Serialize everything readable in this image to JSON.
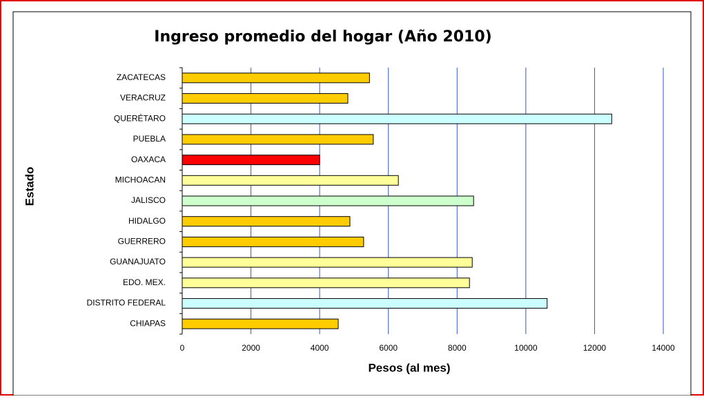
{
  "chart_data": {
    "type": "barh",
    "title": "Ingreso promedio del hogar (Año 2010)",
    "x_label": "Pesos (al mes)",
    "y_label": "Estado",
    "categories": [
      "ZACATECAS",
      "VERACRUZ",
      "QUERÉTARO",
      "PUEBLA",
      "OAXACA",
      "MICHOACAN",
      "JALISCO",
      "HIDALGO",
      "GUERRERO",
      "GUANAJUATO",
      "EDO. MEX.",
      "DISTRITO FEDERAL",
      "CHIAPAS"
    ],
    "values": [
      5450,
      4820,
      12500,
      5560,
      4000,
      6290,
      8480,
      4880,
      5280,
      8440,
      8360,
      10620,
      4540
    ],
    "colors": [
      "#ffcc00",
      "#ffcc00",
      "#ccffff",
      "#ffcc00",
      "#ff0000",
      "#ffff99",
      "#ccffcc",
      "#ffcc00",
      "#ffcc00",
      "#ffff99",
      "#ffff99",
      "#ccffff",
      "#ffcc00"
    ],
    "xlim": [
      0,
      14000
    ],
    "xticks": [
      0,
      2000,
      4000,
      6000,
      8000,
      10000,
      12000,
      14000
    ],
    "grid": true
  }
}
